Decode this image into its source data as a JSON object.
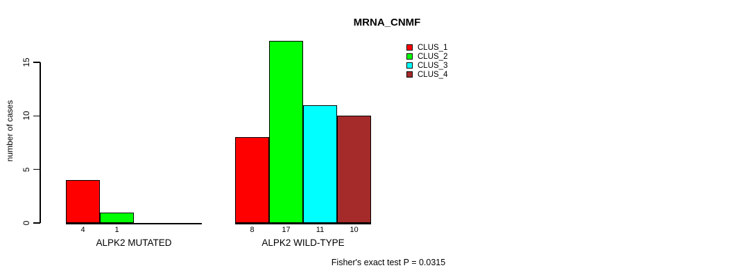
{
  "chart_data": {
    "type": "bar",
    "title": "MRNA_CNMF",
    "ylabel": "number of cases",
    "xlabel": "",
    "ylim": [
      0,
      15
    ],
    "yticks": [
      0,
      5,
      10,
      15
    ],
    "grid": false,
    "legend_position": "top-right",
    "categories": [
      "ALPK2 MUTATED",
      "ALPK2 WILD-TYPE"
    ],
    "series": [
      {
        "name": "CLUS_1",
        "color": "#ff0000",
        "values": [
          4,
          8
        ]
      },
      {
        "name": "CLUS_2",
        "color": "#00ff00",
        "values": [
          1,
          17
        ]
      },
      {
        "name": "CLUS_3",
        "color": "#00ffff",
        "values": [
          0,
          11
        ]
      },
      {
        "name": "CLUS_4",
        "color": "#a52a2a",
        "values": [
          0,
          10
        ]
      }
    ],
    "bar_value_labels": {
      "ALPK2 MUTATED": [
        "4",
        "1"
      ],
      "ALPK2 WILD-TYPE": [
        "8",
        "17",
        "11",
        "10"
      ]
    },
    "annotation": "Fisher's exact test P = 0.0315",
    "colors": {
      "background": "#ffffff",
      "axis": "#000000",
      "bar_border": "#000000",
      "text": "#000000"
    }
  }
}
